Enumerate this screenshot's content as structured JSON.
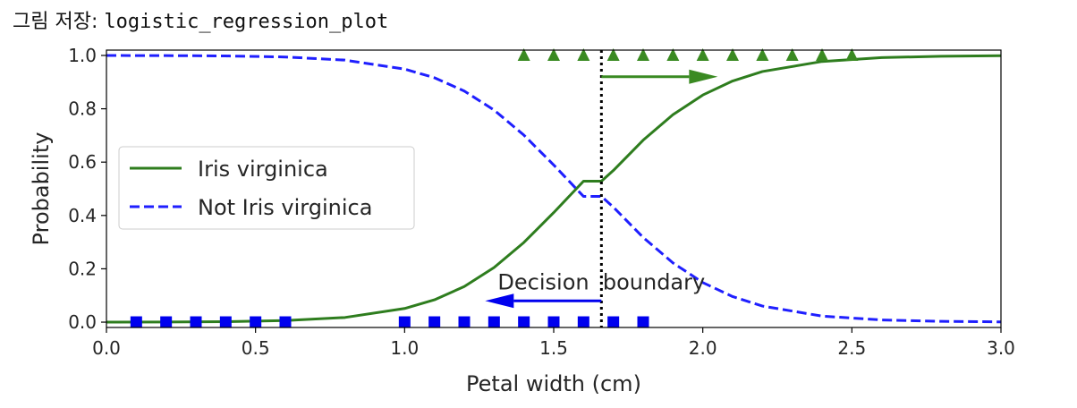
{
  "caption": {
    "prefix": "그림 저장: ",
    "filename": "logistic_regression_plot"
  },
  "chart_data": {
    "type": "line",
    "xlabel": "Petal width (cm)",
    "ylabel": "Probability",
    "xlim": [
      0.0,
      3.0
    ],
    "ylim": [
      -0.02,
      1.02
    ],
    "xticks": [
      "0.0",
      "0.5",
      "1.0",
      "1.5",
      "2.0",
      "2.5",
      "3.0"
    ],
    "yticks": [
      "0.0",
      "0.2",
      "0.4",
      "0.6",
      "0.8",
      "1.0"
    ],
    "grid": false,
    "legend": {
      "position": "center-left",
      "entries": [
        "Iris virginica",
        "Not Iris virginica"
      ]
    },
    "series": [
      {
        "name": "Iris virginica",
        "style": "solid",
        "color": "#2e7d1e",
        "x": [
          0.0,
          0.2,
          0.4,
          0.6,
          0.8,
          1.0,
          1.1,
          1.2,
          1.3,
          1.4,
          1.5,
          1.6,
          1.66,
          1.7,
          1.8,
          1.9,
          2.0,
          2.1,
          2.2,
          2.4,
          2.6,
          2.8,
          3.0
        ],
        "y": [
          0.0002,
          0.0006,
          0.0019,
          0.0058,
          0.0175,
          0.0512,
          0.0836,
          0.1335,
          0.2047,
          0.2988,
          0.4107,
          0.5286,
          0.5,
          0.5687,
          0.6823,
          0.7779,
          0.8516,
          0.9042,
          0.9397,
          0.9774,
          0.9918,
          0.9971,
          0.999
        ]
      },
      {
        "name": "Not Iris virginica",
        "style": "dashed",
        "color": "#1f1fff",
        "x": [
          0.0,
          0.2,
          0.4,
          0.6,
          0.8,
          1.0,
          1.1,
          1.2,
          1.3,
          1.4,
          1.5,
          1.6,
          1.66,
          1.7,
          1.8,
          1.9,
          2.0,
          2.1,
          2.2,
          2.4,
          2.6,
          2.8,
          3.0
        ],
        "y": [
          0.9998,
          0.9994,
          0.9981,
          0.9942,
          0.9825,
          0.9488,
          0.9164,
          0.8665,
          0.7953,
          0.7012,
          0.5893,
          0.4714,
          0.5,
          0.4313,
          0.3177,
          0.2221,
          0.1484,
          0.0958,
          0.0603,
          0.0226,
          0.0082,
          0.0029,
          0.001
        ]
      }
    ],
    "markers": [
      {
        "label": "Iris virginica samples",
        "shape": "triangle",
        "color": "#3a8a22",
        "y": 1.0,
        "x": [
          1.4,
          1.5,
          1.6,
          1.7,
          1.8,
          1.9,
          2.0,
          2.1,
          2.2,
          2.3,
          2.4,
          2.5
        ]
      },
      {
        "label": "Not Iris virginica samples",
        "shape": "square",
        "color": "#0000ee",
        "y": 0.0,
        "x": [
          0.1,
          0.2,
          0.3,
          0.4,
          0.5,
          0.6,
          1.0,
          1.1,
          1.2,
          1.3,
          1.4,
          1.5,
          1.6,
          1.7,
          1.8
        ]
      }
    ],
    "decision_boundary": {
      "x": 1.66,
      "style": "dotted",
      "color": "#000000"
    },
    "annotations": [
      {
        "text": "Decision  boundary",
        "x": 1.66,
        "y": 0.15
      }
    ],
    "arrows": [
      {
        "from": [
          1.66,
          0.92
        ],
        "to": [
          2.05,
          0.92
        ],
        "color": "#3a8a22"
      },
      {
        "from": [
          1.66,
          0.08
        ],
        "to": [
          1.27,
          0.08
        ],
        "color": "#0000ee"
      }
    ]
  }
}
